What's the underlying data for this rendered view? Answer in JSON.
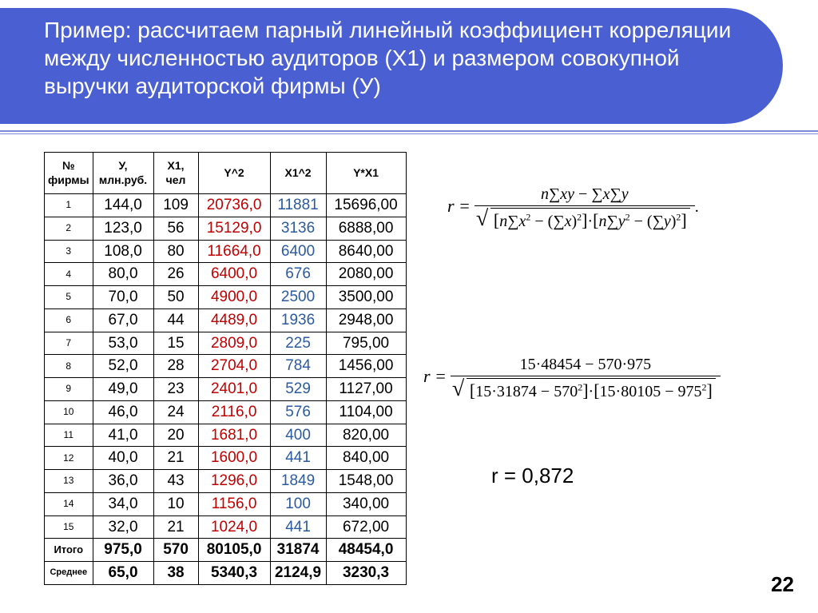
{
  "title": "Пример: рассчитаем парный линейный коэффициент корреляции между численностью аудиторов (Х1) и размером совокупной выручки аудиторской фирмы (У)",
  "accent_color": "#4a5fd1",
  "table": {
    "headers": [
      "№ фирмы",
      "У, млн.руб.",
      "Х1, чел",
      "Y^2",
      "X1^2",
      "Y*X1"
    ],
    "col_colors": {
      "y2": "#c00000",
      "x12": "#2a5aa0"
    },
    "rows": [
      [
        "1",
        "144,0",
        "109",
        "20736,0",
        "11881",
        "15696,00"
      ],
      [
        "2",
        "123,0",
        "56",
        "15129,0",
        "3136",
        "6888,00"
      ],
      [
        "3",
        "108,0",
        "80",
        "11664,0",
        "6400",
        "8640,00"
      ],
      [
        "4",
        "80,0",
        "26",
        "6400,0",
        "676",
        "2080,00"
      ],
      [
        "5",
        "70,0",
        "50",
        "4900,0",
        "2500",
        "3500,00"
      ],
      [
        "6",
        "67,0",
        "44",
        "4489,0",
        "1936",
        "2948,00"
      ],
      [
        "7",
        "53,0",
        "15",
        "2809,0",
        "225",
        "795,00"
      ],
      [
        "8",
        "52,0",
        "28",
        "2704,0",
        "784",
        "1456,00"
      ],
      [
        "9",
        "49,0",
        "23",
        "2401,0",
        "529",
        "1127,00"
      ],
      [
        "10",
        "46,0",
        "24",
        "2116,0",
        "576",
        "1104,00"
      ],
      [
        "11",
        "41,0",
        "20",
        "1681,0",
        "400",
        "820,00"
      ],
      [
        "12",
        "40,0",
        "21",
        "1600,0",
        "441",
        "840,00"
      ],
      [
        "13",
        "36,0",
        "43",
        "1296,0",
        "1849",
        "1548,00"
      ],
      [
        "14",
        "34,0",
        "10",
        "1156,0",
        "100",
        "340,00"
      ],
      [
        "15",
        "32,0",
        "21",
        "1024,0",
        "441",
        "672,00"
      ]
    ],
    "totals": [
      "Итого",
      "975,0",
      "570",
      "80105,0",
      "31874",
      "48454,0"
    ],
    "means": [
      "Среднее",
      "65,0",
      "38",
      "5340,3",
      "2124,9",
      "3230,3"
    ]
  },
  "formula_general": {
    "lhs": "r =",
    "num": "n∑xy − ∑x∑y",
    "den_left": "n∑x² − (∑x)²",
    "den_right": "n∑y² − (∑y)²",
    "tail": "."
  },
  "formula_numeric": {
    "lhs": "r =",
    "num": "15·48454 − 570·975",
    "den_left": "15·31874 − 570²",
    "den_right": "15·80105 − 975²"
  },
  "result": "r = 0,872",
  "page_number": "22"
}
